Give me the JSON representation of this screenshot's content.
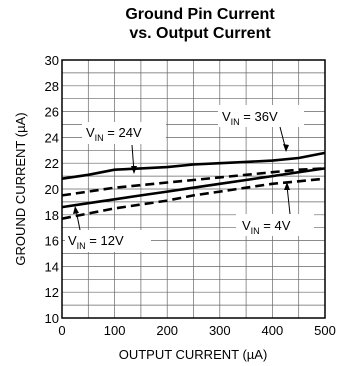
{
  "chart_data": {
    "type": "line",
    "title": [
      "Ground Pin Current",
      "vs. Output Current"
    ],
    "xlabel": "OUTPUT CURRENT (µA)",
    "ylabel": "GROUND CURRENT (µA)",
    "xlim": [
      0,
      500
    ],
    "ylim": [
      10,
      30
    ],
    "xticks": [
      "0",
      "100",
      "200",
      "300",
      "400",
      "500"
    ],
    "yticks": [
      "10",
      "12",
      "14",
      "16",
      "18",
      "20",
      "22",
      "24",
      "26",
      "28",
      "30"
    ],
    "grid": true,
    "series": [
      {
        "name": "VIN = 36V",
        "label_main": "V",
        "label_sub": "IN",
        "label_rest": " = 36V",
        "style": "solid",
        "x": [
          0,
          50,
          100,
          150,
          200,
          250,
          300,
          350,
          400,
          450,
          500
        ],
        "y": [
          20.8,
          21.1,
          21.5,
          21.6,
          21.7,
          21.9,
          22.0,
          22.1,
          22.2,
          22.4,
          22.8
        ]
      },
      {
        "name": "VIN = 24V",
        "label_main": "V",
        "label_sub": "IN",
        "label_rest": " = 24V",
        "style": "dashed",
        "x": [
          0,
          50,
          100,
          150,
          200,
          250,
          300,
          350,
          400,
          450,
          500
        ],
        "y": [
          19.5,
          19.8,
          20.1,
          20.3,
          20.5,
          20.7,
          20.9,
          21.1,
          21.3,
          21.5,
          21.6
        ]
      },
      {
        "name": "VIN = 12V",
        "label_main": "V",
        "label_sub": "IN",
        "label_rest": " = 12V",
        "style": "solid",
        "x": [
          0,
          50,
          100,
          150,
          200,
          250,
          300,
          350,
          400,
          450,
          500
        ],
        "y": [
          18.6,
          18.9,
          19.2,
          19.5,
          19.8,
          20.1,
          20.4,
          20.7,
          21.0,
          21.3,
          21.6
        ]
      },
      {
        "name": "VIN = 4V",
        "label_main": "V",
        "label_sub": "IN",
        "label_rest": " = 4V",
        "style": "dashed",
        "x": [
          0,
          50,
          100,
          150,
          200,
          250,
          300,
          350,
          400,
          450,
          500
        ],
        "y": [
          17.7,
          18.1,
          18.5,
          18.8,
          19.1,
          19.5,
          19.8,
          20.1,
          20.4,
          20.6,
          20.8
        ]
      }
    ]
  }
}
